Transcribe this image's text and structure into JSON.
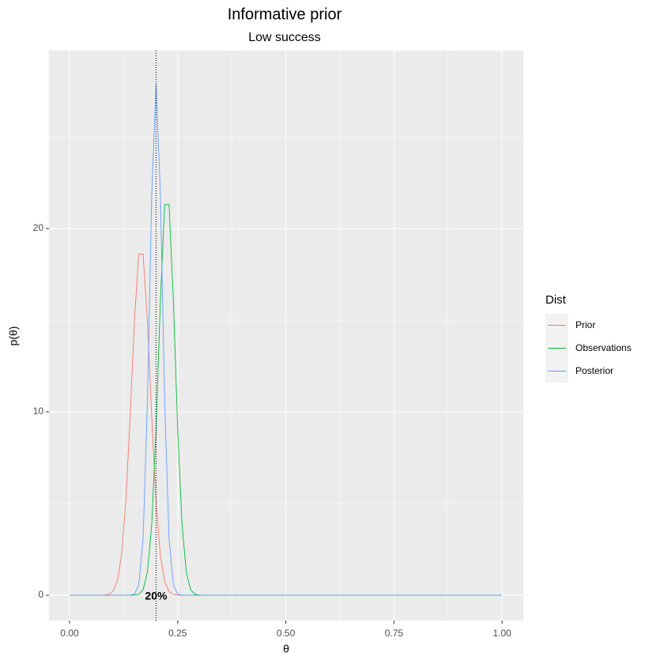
{
  "chart_data": {
    "type": "line",
    "title": "Informative prior",
    "subtitle": "Low success",
    "x_label": "θ",
    "y_label": "p(θ)",
    "legend_title": "Dist",
    "legend_position": "right",
    "grid": true,
    "x": [
      0,
      0.01,
      0.02,
      0.03,
      0.04,
      0.05,
      0.06,
      0.07,
      0.08,
      0.09,
      0.1,
      0.11,
      0.12,
      0.13,
      0.14,
      0.15,
      0.16,
      0.17,
      0.18,
      0.19,
      0.2,
      0.21,
      0.22,
      0.23,
      0.24,
      0.25,
      0.26,
      0.27,
      0.28,
      0.29,
      0.3,
      0.31,
      0.32,
      0.33,
      0.34,
      0.35,
      0.4,
      0.5,
      0.6,
      0.7,
      0.8,
      0.9,
      1.0
    ],
    "series": [
      {
        "name": "Prior",
        "color": "#F8766D",
        "values": [
          0,
          0,
          0,
          0,
          0,
          0,
          0,
          0,
          0.01,
          0.04,
          0.2,
          0.73,
          2.14,
          5.08,
          9.72,
          14.98,
          18.6,
          18.6,
          14.98,
          9.72,
          5.08,
          2.14,
          0.73,
          0.2,
          0.04,
          0.01,
          0,
          0,
          0,
          0,
          0,
          0,
          0,
          0,
          0,
          0,
          0,
          0,
          0,
          0,
          0,
          0,
          0
        ]
      },
      {
        "name": "Observations",
        "color": "#00BA38",
        "values": [
          0,
          0,
          0,
          0,
          0,
          0,
          0,
          0,
          0,
          0,
          0,
          0,
          0,
          0,
          0,
          0.01,
          0.05,
          0.3,
          1.24,
          3.86,
          9.07,
          16.05,
          21.3,
          21.3,
          16.05,
          9.07,
          3.86,
          1.24,
          0.3,
          0.05,
          0.01,
          0,
          0,
          0,
          0,
          0,
          0,
          0,
          0,
          0,
          0,
          0,
          0
        ]
      },
      {
        "name": "Posterior",
        "color": "#619CFF",
        "values": [
          0,
          0,
          0,
          0,
          0,
          0,
          0,
          0,
          0,
          0,
          0,
          0,
          0,
          0,
          0,
          0.06,
          0.56,
          3.09,
          10.49,
          21.84,
          27.9,
          21.84,
          10.49,
          3.09,
          0.56,
          0.06,
          0,
          0,
          0,
          0,
          0,
          0,
          0,
          0,
          0,
          0,
          0,
          0,
          0,
          0,
          0,
          0,
          0
        ]
      }
    ],
    "vline": 0.2,
    "annotation": {
      "text": "20%",
      "x": 0.2,
      "y": 0
    },
    "xlim": [
      -0.0475,
      1.049
    ],
    "ylim": [
      -1.38,
      29.7
    ],
    "xticks": [
      {
        "value": 0,
        "label": "0.00"
      },
      {
        "value": 0.25,
        "label": "0.25"
      },
      {
        "value": 0.5,
        "label": "0.50"
      },
      {
        "value": 0.75,
        "label": "0.75"
      },
      {
        "value": 1,
        "label": "1.00"
      }
    ],
    "yticks": [
      0,
      10,
      20
    ],
    "x_minor_grid": [
      0.125,
      0.375,
      0.625,
      0.875
    ],
    "y_minor_grid": [
      5,
      15,
      25
    ]
  }
}
